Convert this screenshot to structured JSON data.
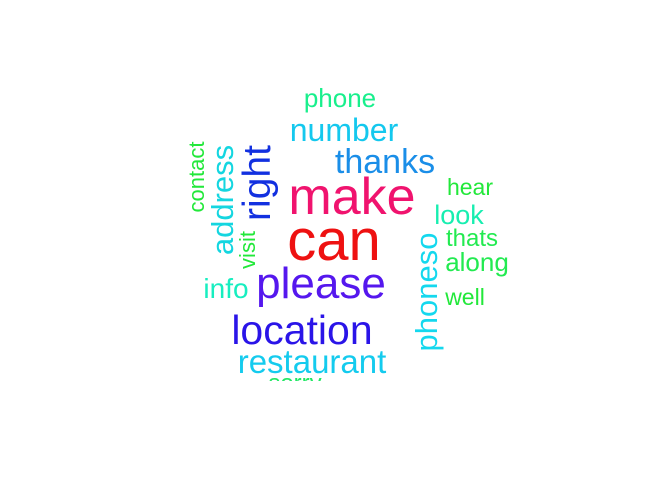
{
  "word_cloud": {
    "words": [
      {
        "text": "can",
        "color": "#ee1111"
      },
      {
        "text": "make",
        "color": "#f0136e"
      },
      {
        "text": "please",
        "color": "#5517ee"
      },
      {
        "text": "location",
        "color": "#2a14e8"
      },
      {
        "text": "right",
        "color": "#1230e0"
      },
      {
        "text": "thanks",
        "color": "#1a8ee8"
      },
      {
        "text": "number",
        "color": "#14c8ee"
      },
      {
        "text": "restaurant",
        "color": "#14cbee"
      },
      {
        "text": "address",
        "color": "#14d6e0"
      },
      {
        "text": "phoneso",
        "color": "#14d8ee"
      },
      {
        "text": "phone",
        "color": "#18ef8c"
      },
      {
        "text": "info",
        "color": "#17eec0"
      },
      {
        "text": "look",
        "color": "#17eeb0"
      },
      {
        "text": "contact",
        "color": "#22e83a"
      },
      {
        "text": "visit",
        "color": "#22e83a"
      },
      {
        "text": "hear",
        "color": "#22e83a"
      },
      {
        "text": "thats",
        "color": "#22ea50"
      },
      {
        "text": "along",
        "color": "#22ea50"
      },
      {
        "text": "well",
        "color": "#22e83a"
      },
      {
        "text": "sorry",
        "color": "#22e865"
      }
    ]
  }
}
